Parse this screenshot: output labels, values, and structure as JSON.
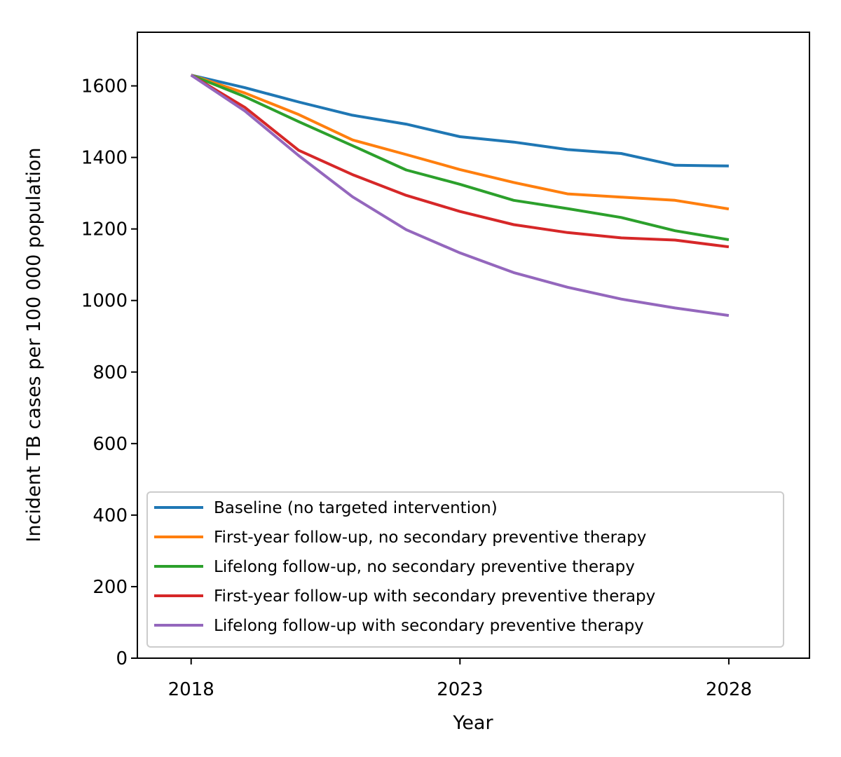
{
  "chart_data": {
    "type": "line",
    "title": "",
    "xlabel": "Year",
    "ylabel": "Incident TB cases per 100 000 population",
    "xlim": [
      2017,
      2029.5
    ],
    "ylim": [
      0,
      1750
    ],
    "xticks": [
      2018,
      2023,
      2028
    ],
    "yticks": [
      0,
      200,
      400,
      600,
      800,
      1000,
      1200,
      1400,
      1600
    ],
    "grid": false,
    "legend_position": "lower-left",
    "x": [
      2018,
      2019,
      2020,
      2021,
      2022,
      2023,
      2024,
      2025,
      2026,
      2027,
      2028
    ],
    "series": [
      {
        "name": "Baseline (no targeted intervention)",
        "color": "#1f77b4",
        "values": [
          1630,
          1595,
          1555,
          1518,
          1493,
          1458,
          1443,
          1422,
          1411,
          1378,
          1376
        ]
      },
      {
        "name": "First-year follow-up, no secondary preventive therapy",
        "color": "#ff7f0e",
        "values": [
          1630,
          1580,
          1520,
          1449,
          1408,
          1366,
          1330,
          1298,
          1289,
          1280,
          1256
        ]
      },
      {
        "name": "Lifelong follow-up, no secondary preventive therapy",
        "color": "#2ca02c",
        "values": [
          1630,
          1570,
          1500,
          1433,
          1365,
          1325,
          1280,
          1257,
          1232,
          1195,
          1170
        ]
      },
      {
        "name": "First-year follow-up with secondary preventive therapy",
        "color": "#d62728",
        "values": [
          1630,
          1540,
          1420,
          1352,
          1294,
          1249,
          1212,
          1190,
          1175,
          1169,
          1150
        ]
      },
      {
        "name": "Lifelong follow-up with secondary preventive therapy",
        "color": "#9467bd",
        "values": [
          1630,
          1530,
          1405,
          1290,
          1198,
          1133,
          1078,
          1037,
          1004,
          979,
          958
        ]
      }
    ]
  }
}
